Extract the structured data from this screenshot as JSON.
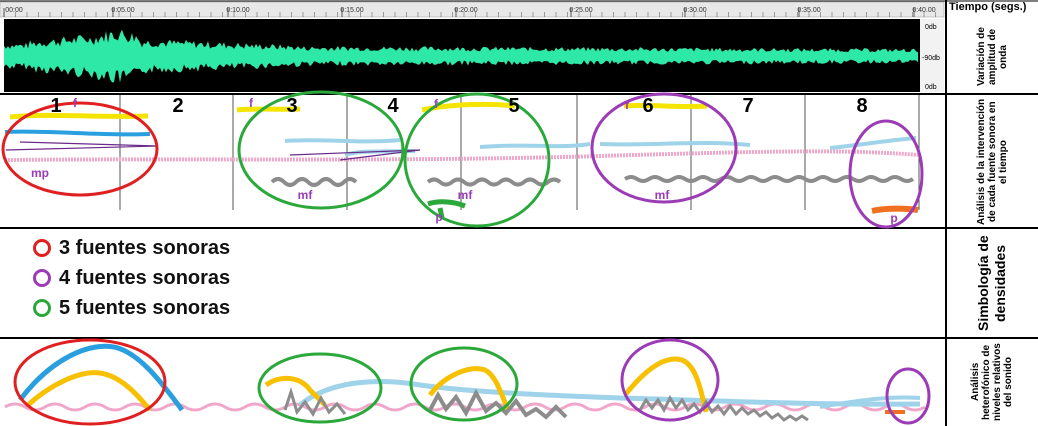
{
  "time_axis": {
    "title": "Tiempo (segs.)",
    "ticks": [
      "00:00",
      "0:05.00",
      "0:10.00",
      "0:15.00",
      "0:20.00",
      "0:25.00",
      "0:30.00",
      "0:35.00",
      "0:40.00"
    ]
  },
  "waveform": {
    "db_labels": [
      "0db",
      "-90db",
      "0db"
    ],
    "color": "#2ee8a8",
    "background": "#000000"
  },
  "row_labels": {
    "amplitude": "Variación de amplitud de onda",
    "intervention": "Análisis de la intervención de cada fuente sonora en el tiempo",
    "symbology": "Simbología de densidades",
    "heterophonic": "Análisis heterofónico de niveles relativos del sonido"
  },
  "sections": [
    "1",
    "2",
    "3",
    "4",
    "5",
    "6",
    "7",
    "8"
  ],
  "dynamics": [
    "f",
    "mp",
    "f",
    "mf",
    "f",
    "p",
    "mf",
    "f",
    "mf",
    "p"
  ],
  "legend": [
    {
      "label": "3 fuentes sonoras",
      "color": "#e02020"
    },
    {
      "label": "4 fuentes sonoras",
      "color": "#9b3bb5"
    },
    {
      "label": "5 fuentes sonoras",
      "color": "#2aa83a"
    }
  ],
  "colors": {
    "red": "#e02020",
    "purple": "#9b3bb5",
    "green": "#2aa83a",
    "yellow": "#f5e400",
    "orange_yellow": "#f7c000",
    "blue": "#2a9fe0",
    "light_blue": "#9fd3ea",
    "pink": "#f0a6c8",
    "gray": "#8c8c8c",
    "orange": "#f07020",
    "dark_purple": "#6a2a8a"
  }
}
